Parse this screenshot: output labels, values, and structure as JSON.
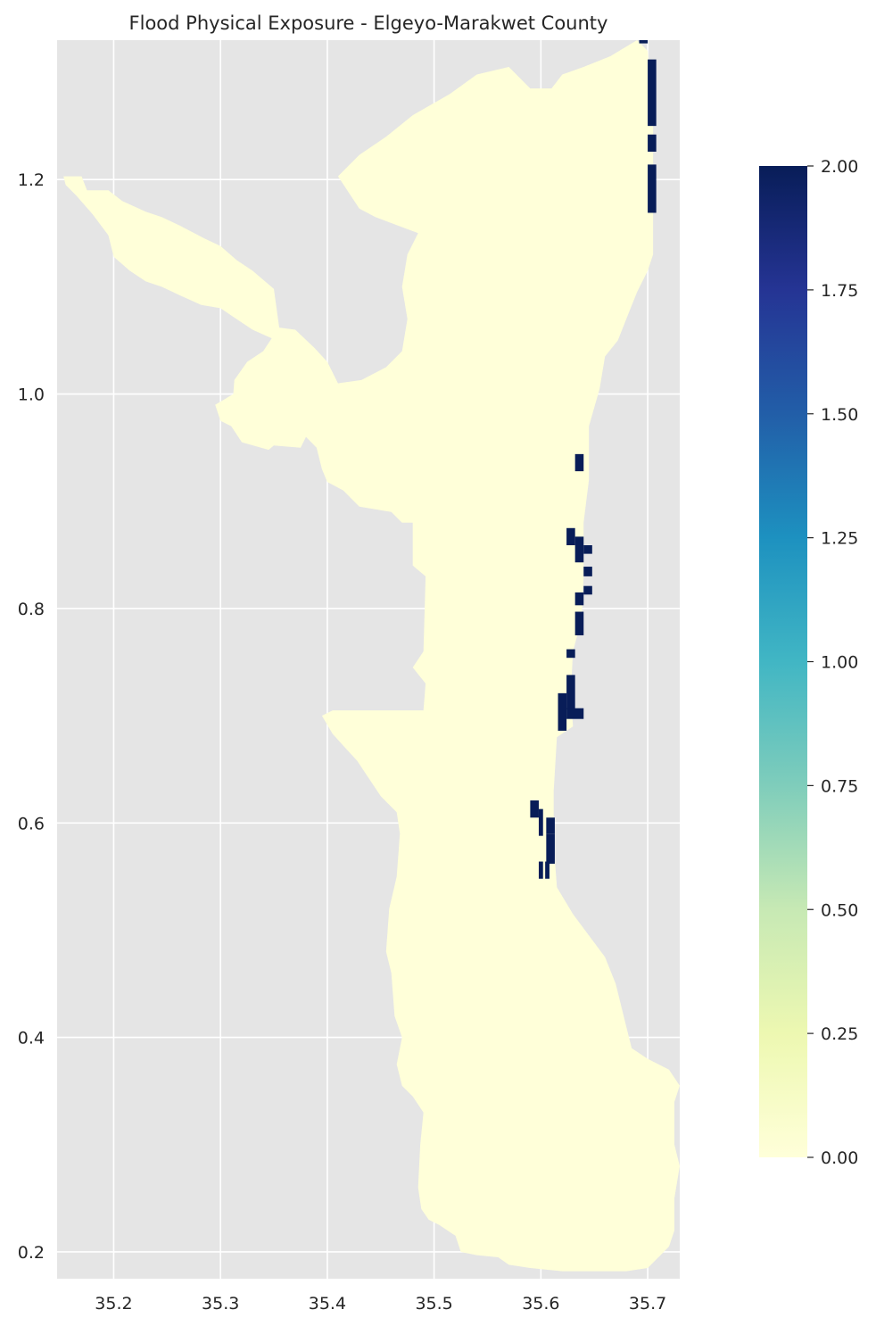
{
  "chart_data": {
    "type": "heatmap",
    "title": "Flood Physical Exposure - Elgeyo-Marakwet County",
    "xlabel": "",
    "ylabel": "",
    "xlim": [
      35.147,
      35.73
    ],
    "ylim": [
      0.175,
      1.33
    ],
    "x_ticks": [
      {
        "value": 35.2,
        "label": "35.2"
      },
      {
        "value": 35.3,
        "label": "35.3"
      },
      {
        "value": 35.4,
        "label": "35.4"
      },
      {
        "value": 35.5,
        "label": "35.5"
      },
      {
        "value": 35.6,
        "label": "35.6"
      },
      {
        "value": 35.7,
        "label": "35.7"
      }
    ],
    "y_ticks": [
      {
        "value": 0.2,
        "label": "0.2"
      },
      {
        "value": 0.4,
        "label": "0.4"
      },
      {
        "value": 0.6,
        "label": "0.6"
      },
      {
        "value": 0.8,
        "label": "0.8"
      },
      {
        "value": 1.0,
        "label": "1.0"
      },
      {
        "value": 1.2,
        "label": "1.2"
      }
    ],
    "grid": true,
    "colormap": "YlGnBu",
    "colormap_stops": [
      "#ffffd9",
      "#edf8b1",
      "#c7e9b4",
      "#7fcdbb",
      "#41b6c4",
      "#1d91c0",
      "#225ea8",
      "#253494",
      "#081d58"
    ],
    "background_color": "#e5e5e5",
    "low_color": "#ffffd9",
    "high_color": "#081d58",
    "colorbar": {
      "min": 0.0,
      "max": 2.0,
      "position": "right",
      "ticks": [
        {
          "value": 0.0,
          "label": "0.00"
        },
        {
          "value": 0.25,
          "label": "0.25"
        },
        {
          "value": 0.5,
          "label": "0.50"
        },
        {
          "value": 0.75,
          "label": "0.75"
        },
        {
          "value": 1.0,
          "label": "1.00"
        },
        {
          "value": 1.25,
          "label": "1.25"
        },
        {
          "value": 1.5,
          "label": "1.50"
        },
        {
          "value": 1.75,
          "label": "1.75"
        },
        {
          "value": 2.0,
          "label": "2.00"
        }
      ]
    },
    "county_outline": [
      [
        35.153,
        1.203
      ],
      [
        35.17,
        1.203
      ],
      [
        35.175,
        1.19
      ],
      [
        35.195,
        1.19
      ],
      [
        35.208,
        1.18
      ],
      [
        35.23,
        1.17
      ],
      [
        35.245,
        1.165
      ],
      [
        35.262,
        1.157
      ],
      [
        35.285,
        1.145
      ],
      [
        35.3,
        1.138
      ],
      [
        35.315,
        1.125
      ],
      [
        35.33,
        1.115
      ],
      [
        35.35,
        1.098
      ],
      [
        35.355,
        1.062
      ],
      [
        35.37,
        1.06
      ],
      [
        35.388,
        1.043
      ],
      [
        35.4,
        1.03
      ],
      [
        35.41,
        1.01
      ],
      [
        35.432,
        1.013
      ],
      [
        35.455,
        1.025
      ],
      [
        35.47,
        1.04
      ],
      [
        35.475,
        1.07
      ],
      [
        35.47,
        1.1
      ],
      [
        35.475,
        1.13
      ],
      [
        35.485,
        1.15
      ],
      [
        35.445,
        1.165
      ],
      [
        35.43,
        1.173
      ],
      [
        35.41,
        1.203
      ],
      [
        35.43,
        1.223
      ],
      [
        35.455,
        1.24
      ],
      [
        35.48,
        1.26
      ],
      [
        35.515,
        1.28
      ],
      [
        35.54,
        1.298
      ],
      [
        35.57,
        1.305
      ],
      [
        35.59,
        1.285
      ],
      [
        35.61,
        1.285
      ],
      [
        35.62,
        1.298
      ],
      [
        35.64,
        1.305
      ],
      [
        35.665,
        1.315
      ],
      [
        35.69,
        1.33
      ],
      [
        35.7,
        1.32
      ],
      [
        35.705,
        1.25
      ],
      [
        35.705,
        1.13
      ],
      [
        35.7,
        1.115
      ],
      [
        35.69,
        1.095
      ],
      [
        35.68,
        1.07
      ],
      [
        35.672,
        1.05
      ],
      [
        35.66,
        1.035
      ],
      [
        35.655,
        1.005
      ],
      [
        35.645,
        0.97
      ],
      [
        35.645,
        0.92
      ],
      [
        35.64,
        0.88
      ],
      [
        35.64,
        0.83
      ],
      [
        35.638,
        0.79
      ],
      [
        35.63,
        0.76
      ],
      [
        35.628,
        0.72
      ],
      [
        35.63,
        0.69
      ],
      [
        35.615,
        0.68
      ],
      [
        35.612,
        0.63
      ],
      [
        35.612,
        0.58
      ],
      [
        35.615,
        0.54
      ],
      [
        35.63,
        0.515
      ],
      [
        35.645,
        0.495
      ],
      [
        35.66,
        0.475
      ],
      [
        35.67,
        0.45
      ],
      [
        35.68,
        0.41
      ],
      [
        35.685,
        0.39
      ],
      [
        35.7,
        0.38
      ],
      [
        35.72,
        0.37
      ],
      [
        35.73,
        0.355
      ],
      [
        35.725,
        0.34
      ],
      [
        35.725,
        0.3
      ],
      [
        35.73,
        0.28
      ],
      [
        35.725,
        0.25
      ],
      [
        35.725,
        0.22
      ],
      [
        35.72,
        0.205
      ],
      [
        35.71,
        0.195
      ],
      [
        35.7,
        0.185
      ],
      [
        35.68,
        0.182
      ],
      [
        35.65,
        0.182
      ],
      [
        35.62,
        0.182
      ],
      [
        35.59,
        0.185
      ],
      [
        35.57,
        0.188
      ],
      [
        35.56,
        0.195
      ],
      [
        35.54,
        0.197
      ],
      [
        35.525,
        0.2
      ],
      [
        35.52,
        0.215
      ],
      [
        35.505,
        0.225
      ],
      [
        35.495,
        0.23
      ],
      [
        35.488,
        0.24
      ],
      [
        35.485,
        0.26
      ],
      [
        35.487,
        0.3
      ],
      [
        35.49,
        0.33
      ],
      [
        35.48,
        0.345
      ],
      [
        35.47,
        0.355
      ],
      [
        35.465,
        0.375
      ],
      [
        35.47,
        0.4
      ],
      [
        35.463,
        0.42
      ],
      [
        35.46,
        0.46
      ],
      [
        35.455,
        0.48
      ],
      [
        35.458,
        0.52
      ],
      [
        35.465,
        0.55
      ],
      [
        35.468,
        0.59
      ],
      [
        35.465,
        0.61
      ],
      [
        35.45,
        0.625
      ],
      [
        35.44,
        0.64
      ],
      [
        35.428,
        0.658
      ],
      [
        35.415,
        0.672
      ],
      [
        35.405,
        0.683
      ],
      [
        35.395,
        0.7
      ],
      [
        35.405,
        0.705
      ],
      [
        35.49,
        0.705
      ],
      [
        35.492,
        0.73
      ],
      [
        35.48,
        0.745
      ],
      [
        35.49,
        0.76
      ],
      [
        35.492,
        0.83
      ],
      [
        35.48,
        0.84
      ],
      [
        35.48,
        0.88
      ],
      [
        35.47,
        0.88
      ],
      [
        35.46,
        0.89
      ],
      [
        35.43,
        0.895
      ],
      [
        35.415,
        0.91
      ],
      [
        35.4,
        0.918
      ],
      [
        35.395,
        0.93
      ],
      [
        35.39,
        0.95
      ],
      [
        35.38,
        0.96
      ],
      [
        35.375,
        0.95
      ],
      [
        35.35,
        0.952
      ],
      [
        35.345,
        0.948
      ],
      [
        35.32,
        0.955
      ],
      [
        35.31,
        0.97
      ],
      [
        35.3,
        0.975
      ],
      [
        35.295,
        0.99
      ],
      [
        35.312,
        1.0
      ],
      [
        35.313,
        1.013
      ],
      [
        35.325,
        1.03
      ],
      [
        35.34,
        1.04
      ],
      [
        35.348,
        1.052
      ],
      [
        35.33,
        1.06
      ],
      [
        35.315,
        1.07
      ],
      [
        35.3,
        1.08
      ],
      [
        35.282,
        1.083
      ],
      [
        35.262,
        1.092
      ],
      [
        35.245,
        1.1
      ],
      [
        35.23,
        1.105
      ],
      [
        35.215,
        1.115
      ],
      [
        35.2,
        1.128
      ],
      [
        35.195,
        1.148
      ],
      [
        35.18,
        1.168
      ],
      [
        35.165,
        1.185
      ],
      [
        35.155,
        1.195
      ]
    ],
    "exposure_cells": [
      {
        "x": 35.692,
        "y": 1.327,
        "w": 0.008,
        "h": 0.01,
        "value": 2
      },
      {
        "x": 35.7,
        "y": 1.25,
        "w": 0.008,
        "h": 0.062,
        "value": 2
      },
      {
        "x": 35.7,
        "y": 1.226,
        "w": 0.008,
        "h": 0.016,
        "value": 2
      },
      {
        "x": 35.7,
        "y": 1.169,
        "w": 0.008,
        "h": 0.045,
        "value": 2
      },
      {
        "x": 35.632,
        "y": 0.928,
        "w": 0.008,
        "h": 0.016,
        "value": 2
      },
      {
        "x": 35.624,
        "y": 0.859,
        "w": 0.008,
        "h": 0.016,
        "value": 2
      },
      {
        "x": 35.632,
        "y": 0.843,
        "w": 0.008,
        "h": 0.024,
        "value": 2
      },
      {
        "x": 35.64,
        "y": 0.851,
        "w": 0.008,
        "h": 0.008,
        "value": 2
      },
      {
        "x": 35.64,
        "y": 0.83,
        "w": 0.008,
        "h": 0.009,
        "value": 2
      },
      {
        "x": 35.64,
        "y": 0.813,
        "w": 0.008,
        "h": 0.008,
        "value": 2
      },
      {
        "x": 35.632,
        "y": 0.803,
        "w": 0.008,
        "h": 0.012,
        "value": 2
      },
      {
        "x": 35.632,
        "y": 0.775,
        "w": 0.008,
        "h": 0.022,
        "value": 2
      },
      {
        "x": 35.624,
        "y": 0.754,
        "w": 0.008,
        "h": 0.008,
        "value": 2
      },
      {
        "x": 35.624,
        "y": 0.706,
        "w": 0.008,
        "h": 0.032,
        "value": 2
      },
      {
        "x": 35.616,
        "y": 0.686,
        "w": 0.008,
        "h": 0.035,
        "value": 2
      },
      {
        "x": 35.624,
        "y": 0.697,
        "w": 0.016,
        "h": 0.01,
        "value": 2
      },
      {
        "x": 35.59,
        "y": 0.605,
        "w": 0.008,
        "h": 0.016,
        "value": 2
      },
      {
        "x": 35.598,
        "y": 0.588,
        "w": 0.004,
        "h": 0.025,
        "value": 2
      },
      {
        "x": 35.605,
        "y": 0.59,
        "w": 0.008,
        "h": 0.015,
        "value": 2
      },
      {
        "x": 35.605,
        "y": 0.562,
        "w": 0.008,
        "h": 0.028,
        "value": 2
      },
      {
        "x": 35.598,
        "y": 0.548,
        "w": 0.004,
        "h": 0.016,
        "value": 2
      },
      {
        "x": 35.604,
        "y": 0.548,
        "w": 0.004,
        "h": 0.016,
        "value": 2
      }
    ]
  }
}
